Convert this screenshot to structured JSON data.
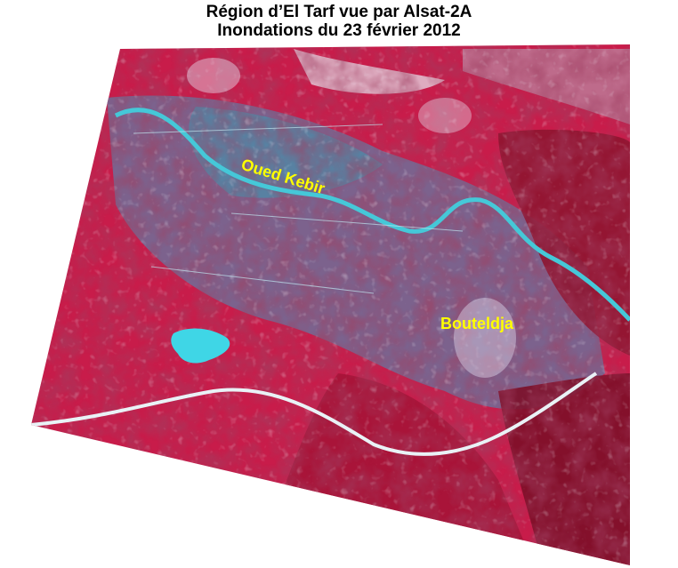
{
  "title": {
    "line1": "Région d’El Tarf vue par Alsat-2A",
    "line2": "Inondations du 23 février 2012"
  },
  "image": {
    "type": "false-color satellite image",
    "colors": {
      "vegetation": "#d81e4e",
      "dense_vegetation": "#8a0f2a",
      "water": "#3fd6e6",
      "bare_soil": "#7a7fa0",
      "urban": "#e8e4f0"
    }
  },
  "labels": {
    "river": "Oued Kebir",
    "town": "Bouteldja"
  }
}
